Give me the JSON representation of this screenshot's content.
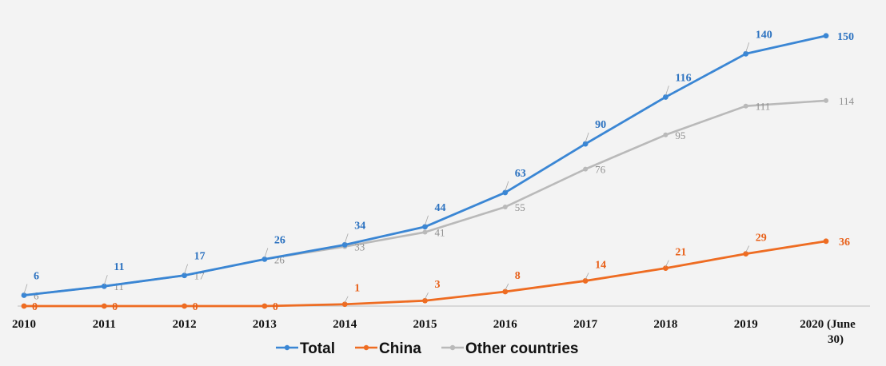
{
  "chart_data": {
    "type": "line",
    "title": "",
    "xlabel": "",
    "ylabel": "",
    "categories": [
      "2010",
      "2011",
      "2012",
      "2013",
      "2014",
      "2015",
      "2016",
      "2017",
      "2018",
      "2019",
      "2020 (June 30)"
    ],
    "ylim": [
      0,
      160
    ],
    "grid": false,
    "legend": "bottom",
    "series": [
      {
        "name": "Total",
        "color": "#3a86d4",
        "values": [
          6,
          11,
          17,
          26,
          34,
          44,
          63,
          90,
          116,
          140,
          150
        ]
      },
      {
        "name": "China",
        "color": "#ee6c22",
        "values": [
          0,
          0,
          0,
          0,
          1,
          3,
          8,
          14,
          21,
          29,
          36
        ]
      },
      {
        "name": "Other countries",
        "color": "#b9b9b9",
        "values": [
          6,
          11,
          17,
          26,
          33,
          41,
          55,
          76,
          95,
          111,
          114
        ]
      }
    ]
  }
}
